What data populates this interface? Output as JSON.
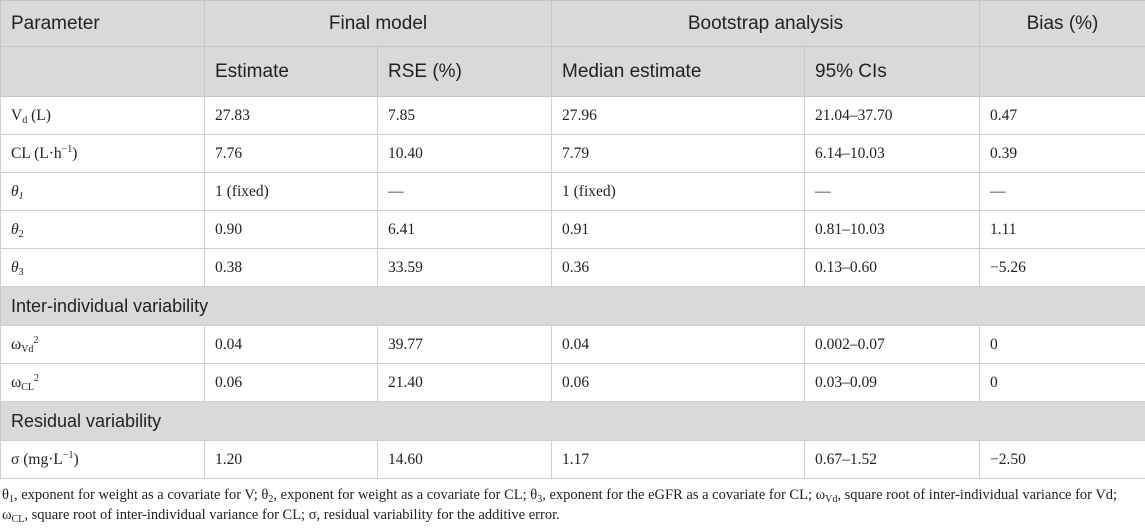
{
  "header": {
    "parameter": "Parameter",
    "final_model": "Final model",
    "bootstrap_analysis": "Bootstrap analysis",
    "bias": "Bias (%)",
    "estimate": "Estimate",
    "rse": "RSE (%)",
    "median_estimate": "Median estimate",
    "ci": "95% CIs"
  },
  "rows": {
    "vd": {
      "base": "V",
      "sub": "d",
      "rest": " (L)",
      "estimate": "27.83",
      "rse": "7.85",
      "median": "27.96",
      "ci": "21.04–37.70",
      "bias": "0.47"
    },
    "cl": {
      "base": "CL (L·h",
      "sup": "−1",
      "rest": ")",
      "estimate": "7.76",
      "rse": "10.40",
      "median": "7.79",
      "ci": "6.14–10.03",
      "bias": "0.39"
    },
    "theta1": {
      "base": "θ",
      "sub": "1",
      "estimate": "1 (fixed)",
      "rse": "—",
      "median": "1 (fixed)",
      "ci": "—",
      "bias": "—"
    },
    "theta2": {
      "base": "θ",
      "sub": "2",
      "estimate": "0.90",
      "rse": "6.41",
      "median": "0.91",
      "ci": "0.81–10.03",
      "bias": "1.11"
    },
    "theta3": {
      "base": "θ",
      "sub": "3",
      "estimate": "0.38",
      "rse": "33.59",
      "median": "0.36",
      "ci": "0.13–0.60",
      "bias": "−5.26"
    },
    "section_iiv": "Inter-individual variability",
    "omega_vd": {
      "base": "ω",
      "sub": "Vd",
      "sup": "2",
      "estimate": "0.04",
      "rse": "39.77",
      "median": "0.04",
      "ci": "0.002–0.07",
      "bias": "0"
    },
    "omega_cl": {
      "base": "ω",
      "sub": "CL",
      "sup": "2",
      "estimate": "0.06",
      "rse": "21.40",
      "median": "0.06",
      "ci": "0.03–0.09",
      "bias": "0"
    },
    "section_residual": "Residual variability",
    "sigma": {
      "base": "σ (mg·L",
      "sup": "−1",
      "rest": ")",
      "estimate": "1.20",
      "rse": "14.60",
      "median": "1.17",
      "ci": "0.67–1.52",
      "bias": "−2.50"
    }
  },
  "footnote": {
    "l1_a": "θ",
    "l1_a_sub": "1",
    "l1_b": ", exponent for weight as a covariate for V; θ",
    "l1_b_sub": "2",
    "l1_c": ", exponent for weight as a covariate for CL; θ",
    "l1_c_sub": "3",
    "l1_d": ", exponent for the eGFR as a covariate for CL; ω",
    "l1_d_sub": "Vd",
    "l1_e": ", square root of inter-individual variance for Vd;",
    "l2_a": "ω",
    "l2_a_sub": "CL",
    "l2_b": ", square root of inter-individual variance for CL; σ, residual variability for the additive error."
  }
}
